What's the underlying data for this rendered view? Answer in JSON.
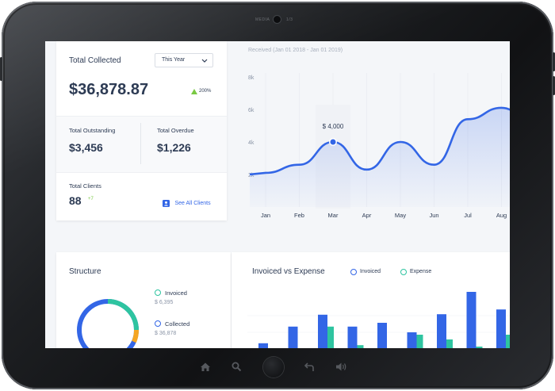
{
  "device": {
    "camera_label_left": "MEDIA",
    "camera_label_right": "1/3"
  },
  "summary": {
    "total_collected_label": "Total Collected",
    "period": "This Year",
    "total_collected_value": "$36,878.87",
    "growth": "200%",
    "outstanding_label": "Total Outstanding",
    "outstanding_value": "$3,456",
    "overdue_label": "Total Overdue",
    "overdue_value": "$1,226",
    "clients_label": "Total Clients",
    "clients_value": "88",
    "clients_delta": "+7",
    "see_all_clients": "See All Clients"
  },
  "received_chart": {
    "title": "Received (Jan 01 2018 - Jan 01 2019)",
    "y_ticks": [
      "8k",
      "6k",
      "4k",
      "2k"
    ],
    "x_labels": [
      "Jan",
      "Feb",
      "Mar",
      "Apr",
      "May",
      "Jun",
      "Jul",
      "Aug"
    ],
    "tooltip": "$ 4,000"
  },
  "structure": {
    "title": "Structure",
    "invoiced_label": "Invoiced",
    "invoiced_value": "$ 6,395",
    "collected_label": "Collected",
    "collected_value": "$ 36,878"
  },
  "ive_chart": {
    "title": "Invoiced vs Expense",
    "legend_invoiced": "Invoiced",
    "legend_expense": "Expense"
  },
  "colors": {
    "primary": "#3366e6",
    "accent": "#2ec4a0",
    "text": "#2d3b54",
    "muted": "#8a94a6"
  },
  "chart_data": [
    {
      "type": "area",
      "title": "Received (Jan 01 2018 - Jan 01 2019)",
      "categories": [
        "Jan",
        "Feb",
        "Mar",
        "Apr",
        "May",
        "Jun",
        "Jul",
        "Aug"
      ],
      "values": [
        2100,
        2600,
        4000,
        2300,
        4000,
        2600,
        5400,
        6100
      ],
      "ylim": [
        0,
        8000
      ],
      "highlight": {
        "category": "Mar",
        "value": 4000
      }
    },
    {
      "type": "bar",
      "title": "Invoiced vs Expense",
      "series": [
        {
          "name": "Invoiced",
          "values": [
            0.12,
            0.47,
            0.72,
            0.47,
            0.55,
            0.35,
            0.73,
            1.2,
            0.83
          ]
        },
        {
          "name": "Expense",
          "values": [
            0,
            0,
            0.47,
            0.08,
            0,
            0.3,
            0.2,
            0.05,
            0.3
          ]
        }
      ]
    }
  ]
}
